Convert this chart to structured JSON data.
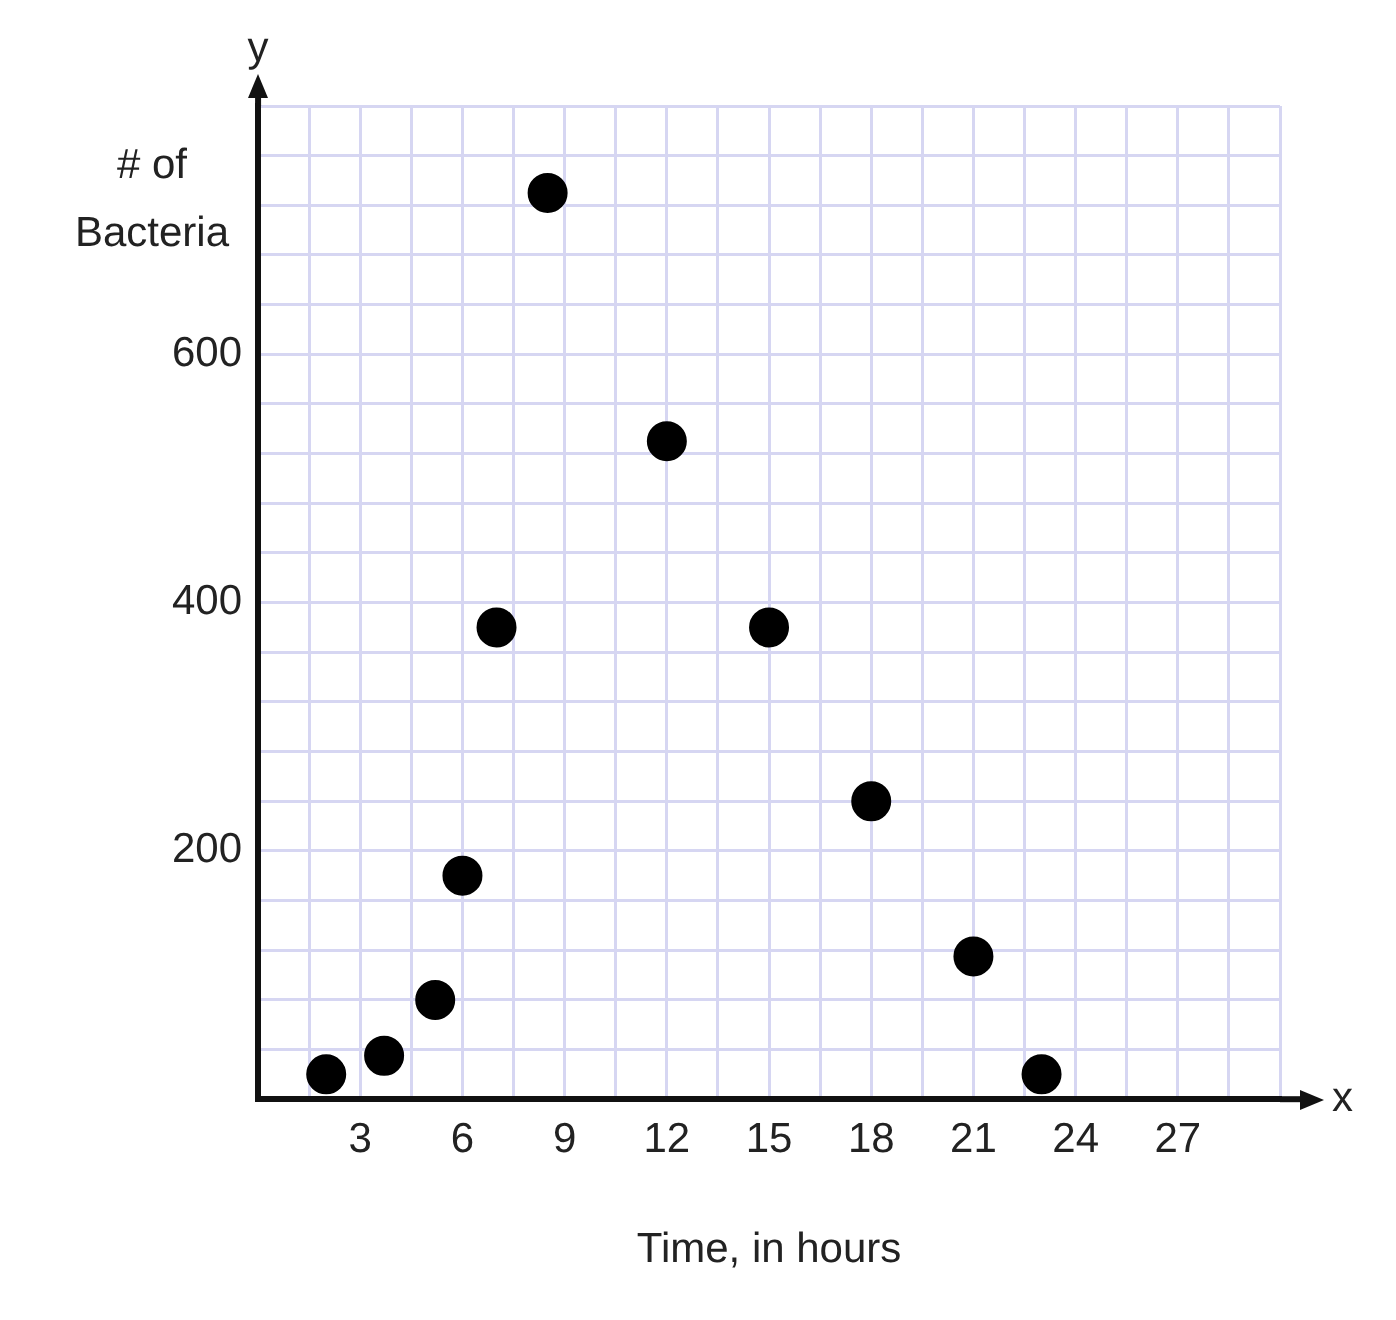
{
  "chart_data": {
    "type": "scatter",
    "xlabel": "Time, in hours",
    "ylabel": "# of Bacteria",
    "annotations": [
      "y",
      "x"
    ],
    "x": [
      2,
      3.7,
      5.2,
      6,
      7,
      8.5,
      12,
      15,
      18,
      21,
      23
    ],
    "series": [
      {
        "color": "#000000",
        "values": [
          20,
          35,
          80,
          180,
          380,
          730,
          530,
          380,
          240,
          115,
          20
        ]
      }
    ],
    "xlim": [
      0,
      30
    ],
    "ylim": [
      0,
      800
    ],
    "xticks": [
      {
        "value": 0,
        "label": null
      },
      {
        "value": 1.5,
        "label": null
      },
      3,
      {
        "value": 4.5,
        "label": null
      },
      6,
      {
        "value": 7.5,
        "label": null
      },
      9,
      {
        "value": 10.5,
        "label": null
      },
      12,
      {
        "value": 13.5,
        "label": null
      },
      15,
      {
        "value": 16.5,
        "label": null
      },
      18,
      {
        "value": 19.5,
        "label": null
      },
      21,
      {
        "value": 22.5,
        "label": null
      },
      24,
      {
        "value": 25.5,
        "label": null
      },
      27,
      {
        "value": 28.5,
        "label": null
      },
      {
        "value": 30,
        "label": null
      }
    ],
    "yticks": [
      {
        "value": 0,
        "label": null
      },
      {
        "value": 40,
        "label": null
      },
      {
        "value": 80,
        "label": null
      },
      {
        "value": 120,
        "label": null
      },
      {
        "value": 160,
        "label": null
      },
      200,
      {
        "value": 240,
        "label": null
      },
      {
        "value": 280,
        "label": null
      },
      {
        "value": 320,
        "label": null
      },
      {
        "value": 360,
        "label": null
      },
      400,
      {
        "value": 440,
        "label": null
      },
      {
        "value": 480,
        "label": null
      },
      {
        "value": 520,
        "label": null
      },
      {
        "value": 560,
        "label": null
      },
      600,
      {
        "value": 640,
        "label": null
      },
      {
        "value": 680,
        "label": null
      },
      {
        "value": 720,
        "label": null
      },
      {
        "value": 760,
        "label": null
      },
      {
        "value": 800,
        "label": null
      }
    ],
    "grid": true,
    "legend": false,
    "marker": "circle"
  }
}
